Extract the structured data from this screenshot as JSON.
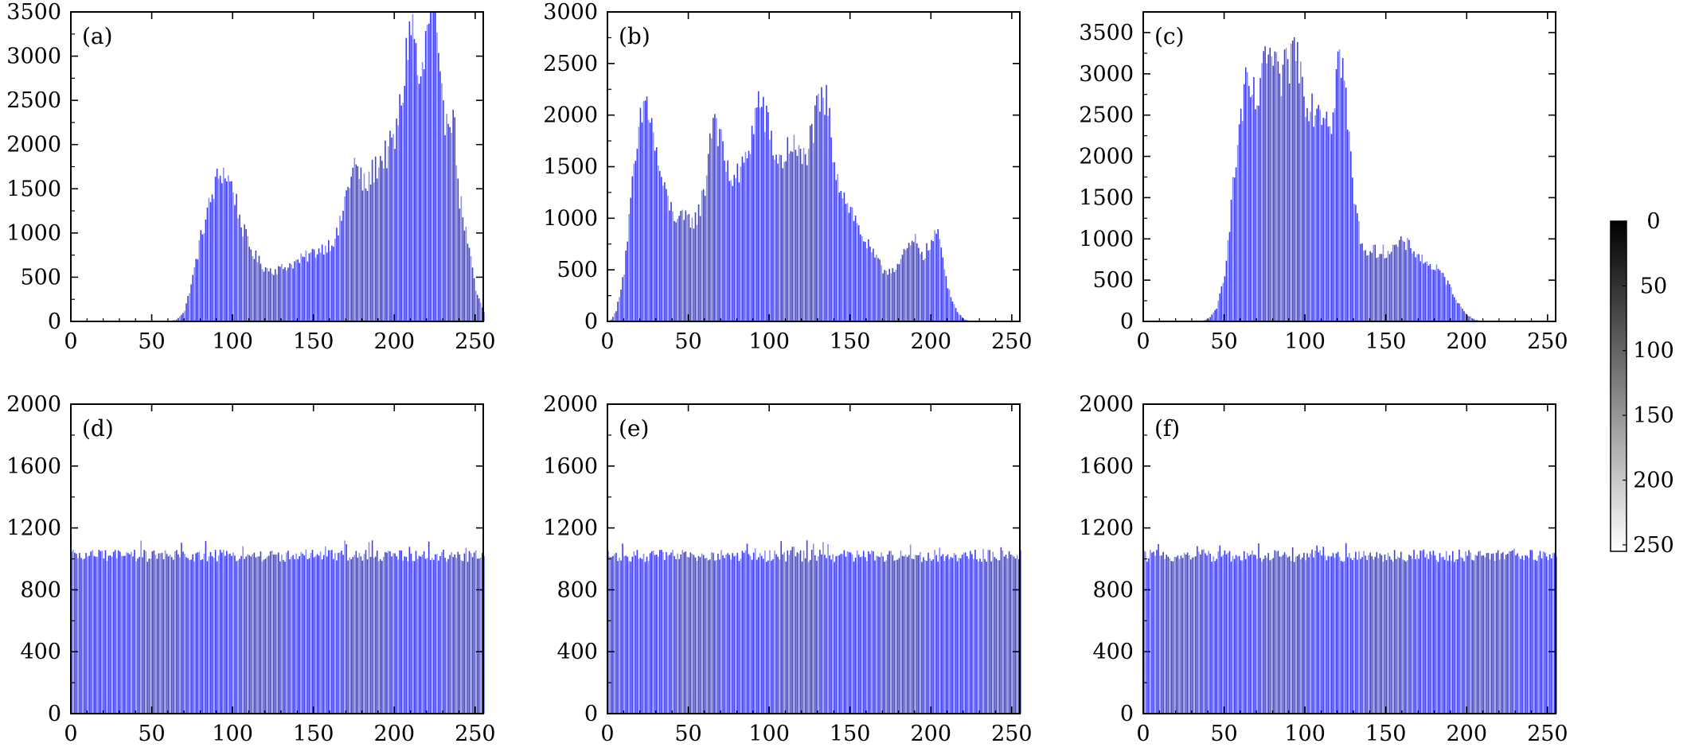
{
  "figure": {
    "bar_color": "#3b3bf0",
    "bar_color_light": "#8c8cf5",
    "colorbar": {
      "ticks": [
        "0",
        "50",
        "100",
        "150",
        "200",
        "250"
      ],
      "gradient_top": "#000000",
      "gradient_bottom": "#ffffff"
    }
  },
  "chart_data": [
    {
      "type": "bar",
      "label": "(a)",
      "xlim": [
        0,
        255
      ],
      "ylim": [
        0,
        3500
      ],
      "xticks": [
        0,
        50,
        100,
        150,
        200,
        250
      ],
      "yticks": [
        0,
        500,
        1000,
        1500,
        2000,
        2500,
        3000,
        3500
      ],
      "grid": false,
      "profile_x": [
        0,
        60,
        65,
        70,
        75,
        80,
        85,
        90,
        93,
        96,
        100,
        105,
        110,
        115,
        120,
        125,
        130,
        140,
        150,
        160,
        165,
        170,
        175,
        178,
        182,
        185,
        190,
        195,
        200,
        205,
        208,
        210,
        213,
        215,
        218,
        220,
        222,
        223,
        225,
        228,
        230,
        233,
        236,
        238,
        240,
        245,
        250,
        255
      ],
      "profile_y": [
        0,
        0,
        20,
        120,
        500,
        950,
        1300,
        1600,
        1700,
        1650,
        1500,
        1100,
        850,
        700,
        600,
        580,
        600,
        680,
        780,
        880,
        1000,
        1450,
        1780,
        1650,
        1500,
        1650,
        1800,
        1900,
        2050,
        2600,
        3200,
        3400,
        3100,
        2600,
        2900,
        3350,
        3500,
        3550,
        3300,
        2600,
        2300,
        2400,
        2350,
        1900,
        1400,
        900,
        350,
        100
      ]
    },
    {
      "type": "bar",
      "label": "(b)",
      "xlim": [
        0,
        255
      ],
      "ylim": [
        0,
        3000
      ],
      "xticks": [
        0,
        50,
        100,
        150,
        200,
        250
      ],
      "yticks": [
        0,
        500,
        1000,
        1500,
        2000,
        2500,
        3000
      ],
      "grid": false,
      "profile_x": [
        0,
        2,
        5,
        10,
        15,
        20,
        23,
        26,
        30,
        35,
        40,
        45,
        50,
        55,
        60,
        63,
        66,
        70,
        75,
        80,
        85,
        90,
        93,
        96,
        100,
        105,
        110,
        113,
        116,
        120,
        125,
        130,
        135,
        140,
        145,
        150,
        155,
        160,
        165,
        170,
        175,
        180,
        185,
        190,
        195,
        200,
        203,
        206,
        210,
        215,
        220,
        225,
        255
      ],
      "profile_y": [
        0,
        20,
        100,
        500,
        1300,
        1900,
        2150,
        2000,
        1600,
        1250,
        1050,
        990,
        980,
        1000,
        1300,
        1800,
        2050,
        1700,
        1400,
        1400,
        1550,
        1900,
        2150,
        2050,
        1800,
        1550,
        1600,
        1750,
        1650,
        1550,
        1750,
        2050,
        2150,
        1550,
        1250,
        1100,
        900,
        750,
        620,
        500,
        500,
        560,
        700,
        780,
        650,
        750,
        880,
        700,
        350,
        120,
        20,
        0,
        0
      ]
    },
    {
      "type": "bar",
      "label": "(c)",
      "xlim": [
        0,
        255
      ],
      "ylim": [
        0,
        3750
      ],
      "xticks": [
        0,
        50,
        100,
        150,
        200,
        250
      ],
      "yticks": [
        0,
        500,
        1000,
        1500,
        2000,
        2500,
        3000,
        3500
      ],
      "grid": false,
      "profile_x": [
        0,
        35,
        40,
        45,
        50,
        55,
        60,
        63,
        66,
        70,
        73,
        76,
        80,
        83,
        86,
        90,
        93,
        96,
        100,
        105,
        108,
        112,
        116,
        120,
        123,
        126,
        130,
        135,
        140,
        145,
        150,
        155,
        160,
        165,
        170,
        175,
        180,
        185,
        190,
        195,
        200,
        205,
        210,
        255
      ],
      "profile_y": [
        0,
        0,
        30,
        150,
        600,
        1600,
        2500,
        2800,
        2750,
        2650,
        2850,
        3300,
        3100,
        2900,
        2950,
        3150,
        3350,
        3150,
        2750,
        2600,
        2650,
        2550,
        2450,
        3200,
        3150,
        2400,
        1500,
        900,
        850,
        850,
        850,
        900,
        950,
        900,
        800,
        700,
        650,
        550,
        400,
        200,
        80,
        20,
        0,
        0
      ]
    },
    {
      "type": "bar",
      "label": "(d)",
      "xlim": [
        0,
        255
      ],
      "ylim": [
        0,
        2000
      ],
      "xticks": [
        0,
        50,
        100,
        150,
        200,
        250
      ],
      "yticks": [
        0,
        400,
        800,
        1200,
        1600,
        2000
      ],
      "grid": false,
      "mean": 1020,
      "spread": 40
    },
    {
      "type": "bar",
      "label": "(e)",
      "xlim": [
        0,
        255
      ],
      "ylim": [
        0,
        2000
      ],
      "xticks": [
        0,
        50,
        100,
        150,
        200,
        250
      ],
      "yticks": [
        0,
        400,
        800,
        1200,
        1600,
        2000
      ],
      "grid": false,
      "mean": 1020,
      "spread": 40
    },
    {
      "type": "bar",
      "label": "(f)",
      "xlim": [
        0,
        255
      ],
      "ylim": [
        0,
        2000
      ],
      "xticks": [
        0,
        50,
        100,
        150,
        200,
        250
      ],
      "yticks": [
        0,
        400,
        800,
        1200,
        1600,
        2000
      ],
      "grid": false,
      "mean": 1020,
      "spread": 40
    }
  ]
}
